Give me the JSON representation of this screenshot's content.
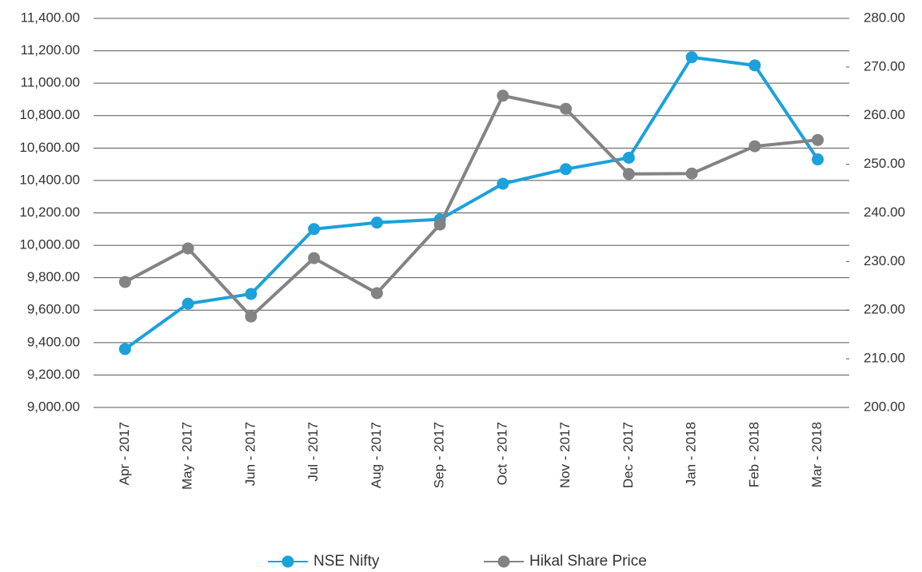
{
  "chart_data": {
    "type": "line",
    "categories": [
      "Apr - 2017",
      "May - 2017",
      "Jun - 2017",
      "Jul - 2017",
      "Aug - 2017",
      "Sep - 2017",
      "Oct - 2017",
      "Nov - 2017",
      "Dec - 2017",
      "Jan - 2018",
      "Feb - 2018",
      "Mar - 2018"
    ],
    "series": [
      {
        "name": "NSE Nifty",
        "color": "#1ba1dc",
        "values": [
          9360,
          9640,
          9700,
          10100,
          10140,
          10160,
          10380,
          10470,
          10540,
          11160,
          11110,
          10530
        ]
      },
      {
        "name": "Hikal Share Price",
        "color": "#838383",
        "axis": "y2",
        "values": [
          225.8,
          232.7,
          218.7,
          230.7,
          223.5,
          237.6,
          264.1,
          261.4,
          248,
          248.1,
          253.7,
          255
        ]
      }
    ],
    "ylim": [
      9000,
      11400
    ],
    "yticks": [
      {
        "value": 9000,
        "label": "9,000.00"
      },
      {
        "value": 9200,
        "label": "9,200.00"
      },
      {
        "value": 9400,
        "label": "9,400.00"
      },
      {
        "value": 9600,
        "label": "9,600.00"
      },
      {
        "value": 9800,
        "label": "9,800.00"
      },
      {
        "value": 10000,
        "label": "10,000.00"
      },
      {
        "value": 10200,
        "label": "10,200.00"
      },
      {
        "value": 10400,
        "label": "10,400.00"
      },
      {
        "value": 10600,
        "label": "10,600.00"
      },
      {
        "value": 10800,
        "label": "10,800.00"
      },
      {
        "value": 11000,
        "label": "11,000.00"
      },
      {
        "value": 11200,
        "label": "11,200.00"
      },
      {
        "value": 11400,
        "label": "11,400.00"
      }
    ],
    "y2lim": [
      200,
      280
    ],
    "y2ticks": [
      {
        "value": 200,
        "label": "200.00"
      },
      {
        "value": 210,
        "label": "210.00"
      },
      {
        "value": 220,
        "label": "220.00"
      },
      {
        "value": 230,
        "label": "230.00"
      },
      {
        "value": 240,
        "label": "240.00"
      },
      {
        "value": 250,
        "label": "250.00"
      },
      {
        "value": 260,
        "label": "260.00"
      },
      {
        "value": 270,
        "label": "270.00"
      },
      {
        "value": 280,
        "label": "280.00"
      }
    ],
    "grid": true,
    "legend": "bottom"
  }
}
